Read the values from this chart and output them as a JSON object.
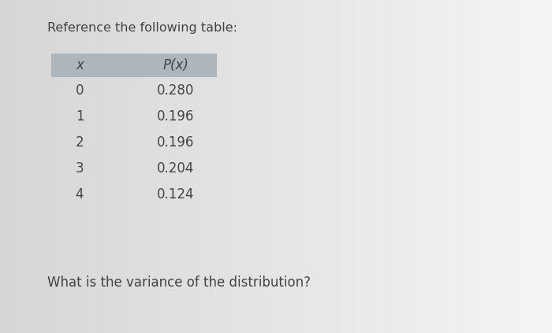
{
  "title": "Reference the following table:",
  "question": "What is the variance of the distribution?",
  "col_headers": [
    "x",
    "P(x)"
  ],
  "rows": [
    [
      "0",
      "0.280"
    ],
    [
      "1",
      "0.196"
    ],
    [
      "2",
      "0.196"
    ],
    [
      "3",
      "0.204"
    ],
    [
      "4",
      "0.124"
    ]
  ],
  "header_bg": "#adb5bd",
  "text_color": "#444444",
  "title_fontsize": 11.5,
  "question_fontsize": 12,
  "table_fontsize": 12,
  "background": "#e0e0e0"
}
